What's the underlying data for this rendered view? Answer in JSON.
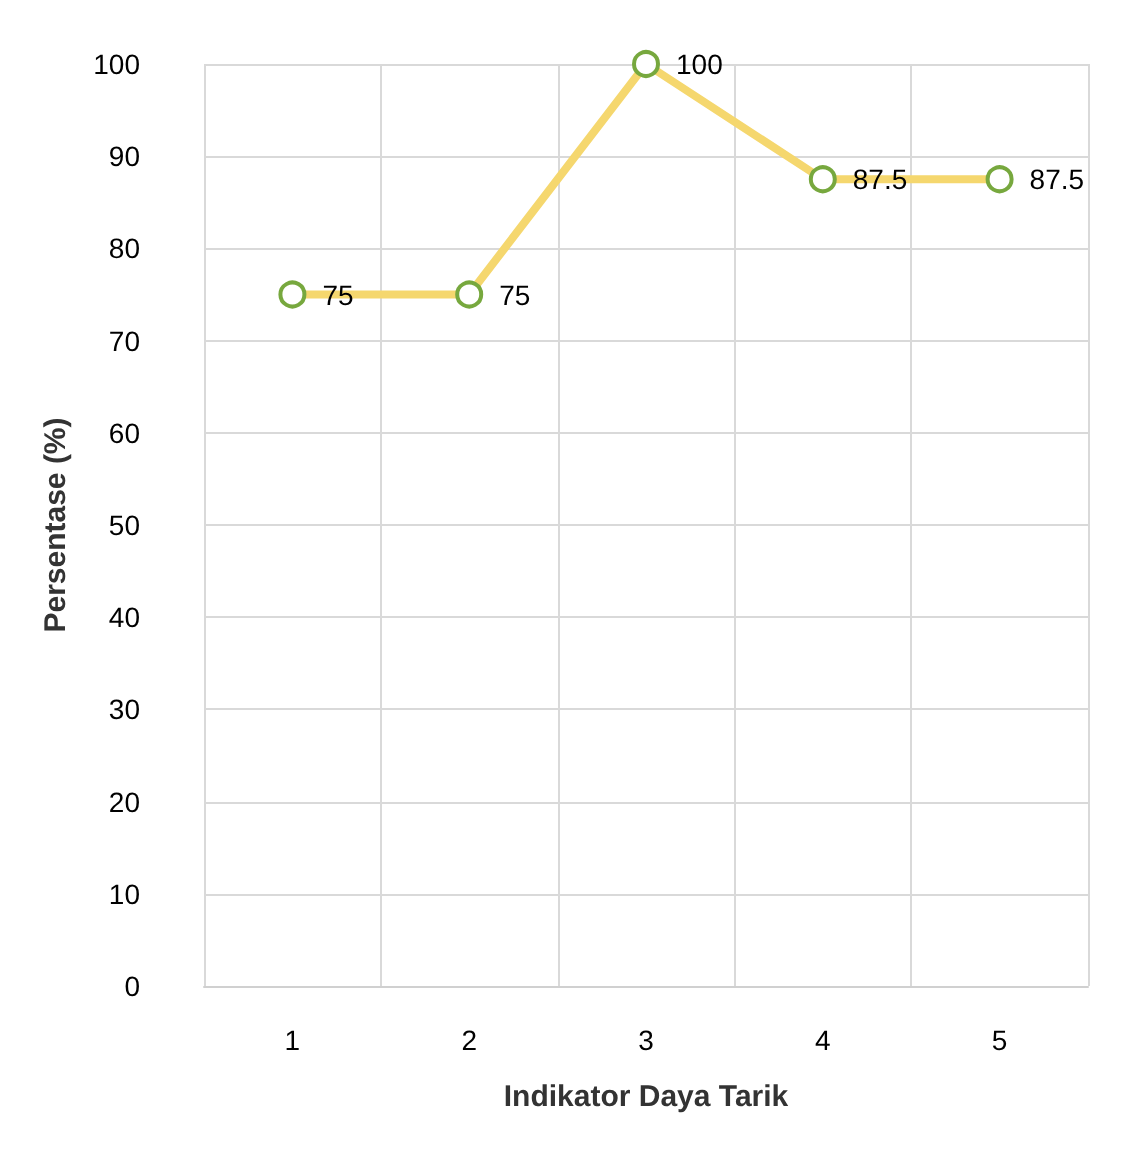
{
  "chart_data": {
    "type": "line",
    "xlabel": "Indikator Daya Tarik",
    "ylabel": "Persentase (%)",
    "categories": [
      "1",
      "2",
      "3",
      "4",
      "5"
    ],
    "series": [
      {
        "color": "#f5d76e",
        "values": [
          75,
          75,
          100,
          87.5,
          87.5
        ]
      }
    ],
    "ylim": [
      0,
      100
    ],
    "yticks": [
      0,
      10,
      20,
      30,
      40,
      50,
      60,
      70,
      80,
      90,
      100
    ],
    "grid": true,
    "marker": "circle",
    "data_labels": true,
    "line_style": "solid"
  }
}
